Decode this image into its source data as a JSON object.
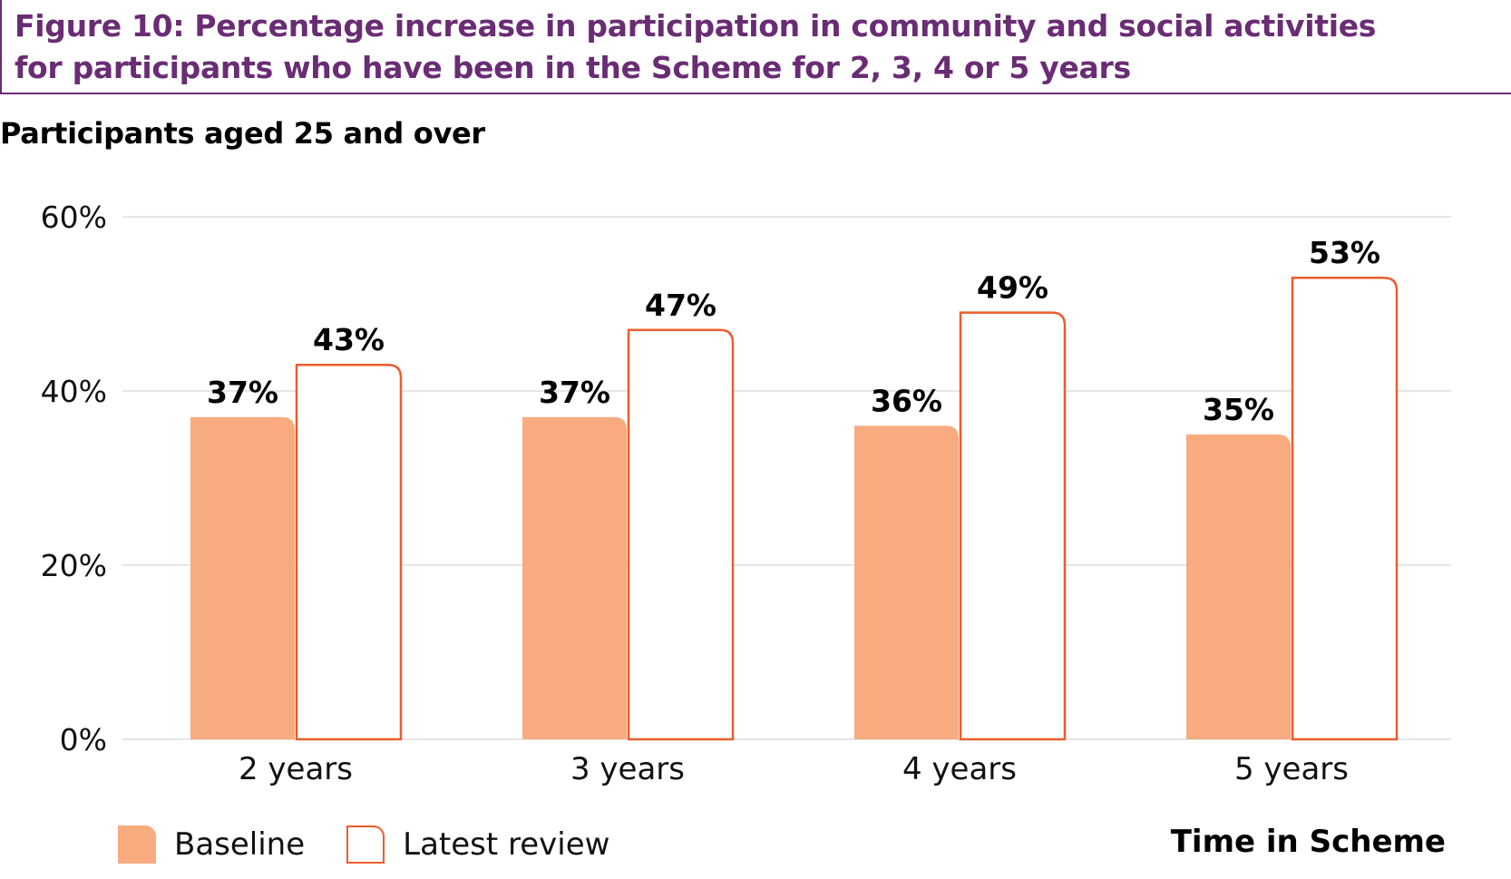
{
  "figure": {
    "title": "Figure 10: Percentage increase in participation in community and social activities for participants who have been in the Scheme for 2, 3, 4 or 5 years",
    "subtitle": "Participants aged 25 and over"
  },
  "colors": {
    "accent": "#6a2c74",
    "baseline_fill": "#f7ab7f",
    "latest_outline": "#ec5d2e",
    "gridline": "#dddddd"
  },
  "chart_data": {
    "type": "bar",
    "title": "Participants aged 25 and over",
    "xlabel": "Time in Scheme",
    "ylabel": "",
    "categories": [
      "2 years",
      "3 years",
      "4 years",
      "5 years"
    ],
    "series": [
      {
        "name": "Baseline",
        "values": [
          37,
          37,
          36,
          35
        ],
        "labels": [
          "37%",
          "37%",
          "36%",
          "35%"
        ],
        "style": "filled"
      },
      {
        "name": "Latest review",
        "values": [
          43,
          47,
          49,
          53
        ],
        "labels": [
          "43%",
          "47%",
          "49%",
          "53%"
        ],
        "style": "outline"
      }
    ],
    "ylim": [
      0,
      60
    ],
    "yticks": [
      0,
      20,
      40,
      60
    ],
    "ytick_labels": [
      "0%",
      "20%",
      "40%",
      "60%"
    ],
    "grid": true,
    "legend_position": "bottom-left"
  },
  "legend": {
    "items": [
      {
        "label": "Baseline"
      },
      {
        "label": "Latest review"
      }
    ]
  }
}
